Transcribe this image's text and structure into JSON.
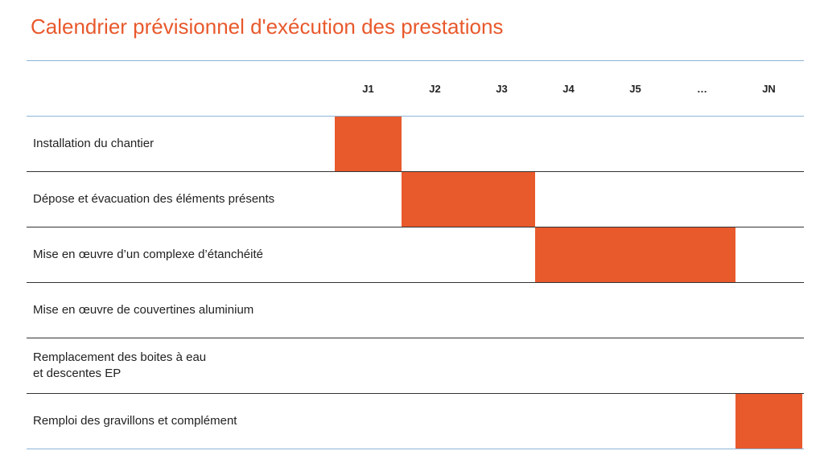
{
  "title": "Calendrier prévisionnel d'exécution des prestations",
  "colors": {
    "accent": "#e8592c",
    "grid_blue": "#8db4d8",
    "grid_dark": "#333333",
    "text": "#222222"
  },
  "chart_data": {
    "type": "table",
    "columns": [
      "J1",
      "J2",
      "J3",
      "J4",
      "J5",
      "…",
      "JN"
    ],
    "tasks": [
      {
        "label": "Installation du chantier",
        "start": 0,
        "end": 0
      },
      {
        "label": "Dépose et évacuation des éléments présents",
        "start": 1,
        "end": 2
      },
      {
        "label": "Mise en œuvre d’un complexe d’étanchéité",
        "start": 3,
        "end": 5
      },
      {
        "label": "Mise en œuvre de couvertines aluminium",
        "start": null,
        "end": null
      },
      {
        "label": "Remplacement des boites à eau\net descentes EP",
        "start": null,
        "end": null
      },
      {
        "label": "Remploi des gravillons et complément",
        "start": 6,
        "end": 6
      }
    ]
  }
}
